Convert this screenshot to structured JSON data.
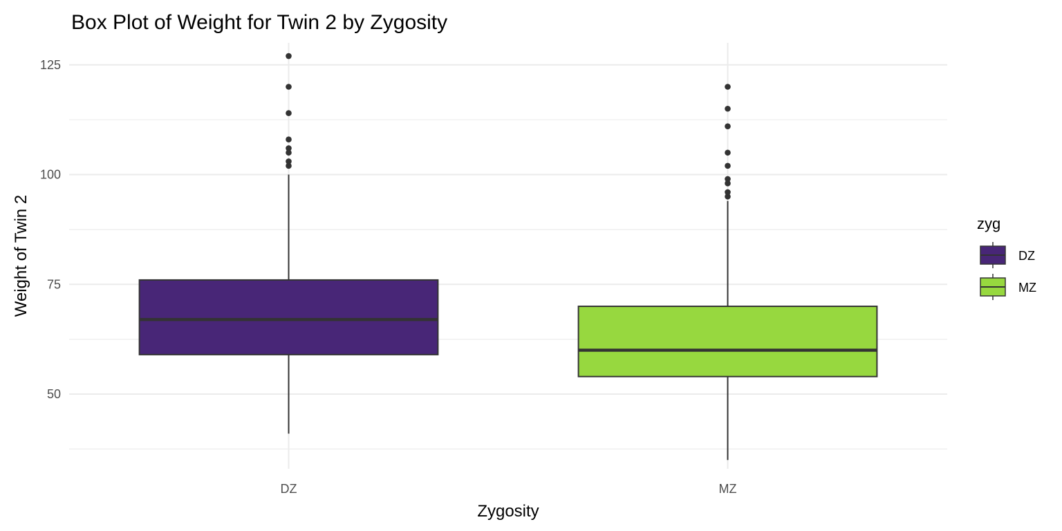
{
  "chart_data": {
    "type": "box",
    "title": "Box Plot of Weight for Twin 2 by Zygosity",
    "xlabel": "Zygosity",
    "ylabel": "Weight of Twin 2",
    "ylim": [
      33,
      130
    ],
    "yticks": [
      50,
      75,
      100,
      125
    ],
    "y_minor_ticks": [
      37.5,
      62.5,
      87.5,
      112.5
    ],
    "grid": true,
    "categories": [
      "DZ",
      "MZ"
    ],
    "series": [
      {
        "category": "DZ",
        "color": "#482677",
        "whisker_low": 41,
        "q1": 59,
        "median": 67,
        "q3": 76,
        "whisker_high": 100,
        "outliers": [
          102,
          103,
          105,
          106,
          108,
          114,
          120,
          127
        ]
      },
      {
        "category": "MZ",
        "color": "#97d83f",
        "whisker_low": 35,
        "q1": 54,
        "median": 60,
        "q3": 70,
        "whisker_high": 94,
        "outliers": [
          95,
          96,
          98,
          99,
          102,
          105,
          111,
          115,
          120
        ]
      }
    ],
    "legend": {
      "title": "zyg",
      "position": "right",
      "items": [
        {
          "label": "DZ",
          "color": "#482677"
        },
        {
          "label": "MZ",
          "color": "#97d83f"
        }
      ]
    }
  }
}
